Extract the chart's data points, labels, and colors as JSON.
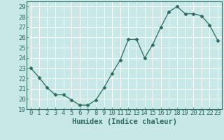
{
  "x": [
    0,
    1,
    2,
    3,
    4,
    5,
    6,
    7,
    8,
    9,
    10,
    11,
    12,
    13,
    14,
    15,
    16,
    17,
    18,
    19,
    20,
    21,
    22,
    23
  ],
  "y": [
    23.0,
    22.1,
    21.1,
    20.4,
    20.4,
    19.9,
    19.4,
    19.4,
    19.9,
    21.1,
    22.5,
    23.8,
    25.8,
    25.8,
    24.0,
    25.3,
    27.0,
    28.5,
    29.0,
    28.3,
    28.3,
    28.1,
    27.2,
    25.7
  ],
  "line_color": "#2d6b5e",
  "marker": "D",
  "marker_size": 2.5,
  "bg_color": "#c8e8e8",
  "grid_color": "#b0d8d8",
  "title": "",
  "xlabel": "Humidex (Indice chaleur)",
  "ylabel": "",
  "xlim": [
    -0.5,
    23.5
  ],
  "ylim": [
    19,
    29.5
  ],
  "yticks": [
    19,
    20,
    21,
    22,
    23,
    24,
    25,
    26,
    27,
    28,
    29
  ],
  "xticks": [
    0,
    1,
    2,
    3,
    4,
    5,
    6,
    7,
    8,
    9,
    10,
    11,
    12,
    13,
    14,
    15,
    16,
    17,
    18,
    19,
    20,
    21,
    22,
    23
  ],
  "tick_color": "#2d6b5e",
  "axis_color": "#2d6b5e",
  "xlabel_fontsize": 7.5,
  "tick_fontsize": 6.5
}
